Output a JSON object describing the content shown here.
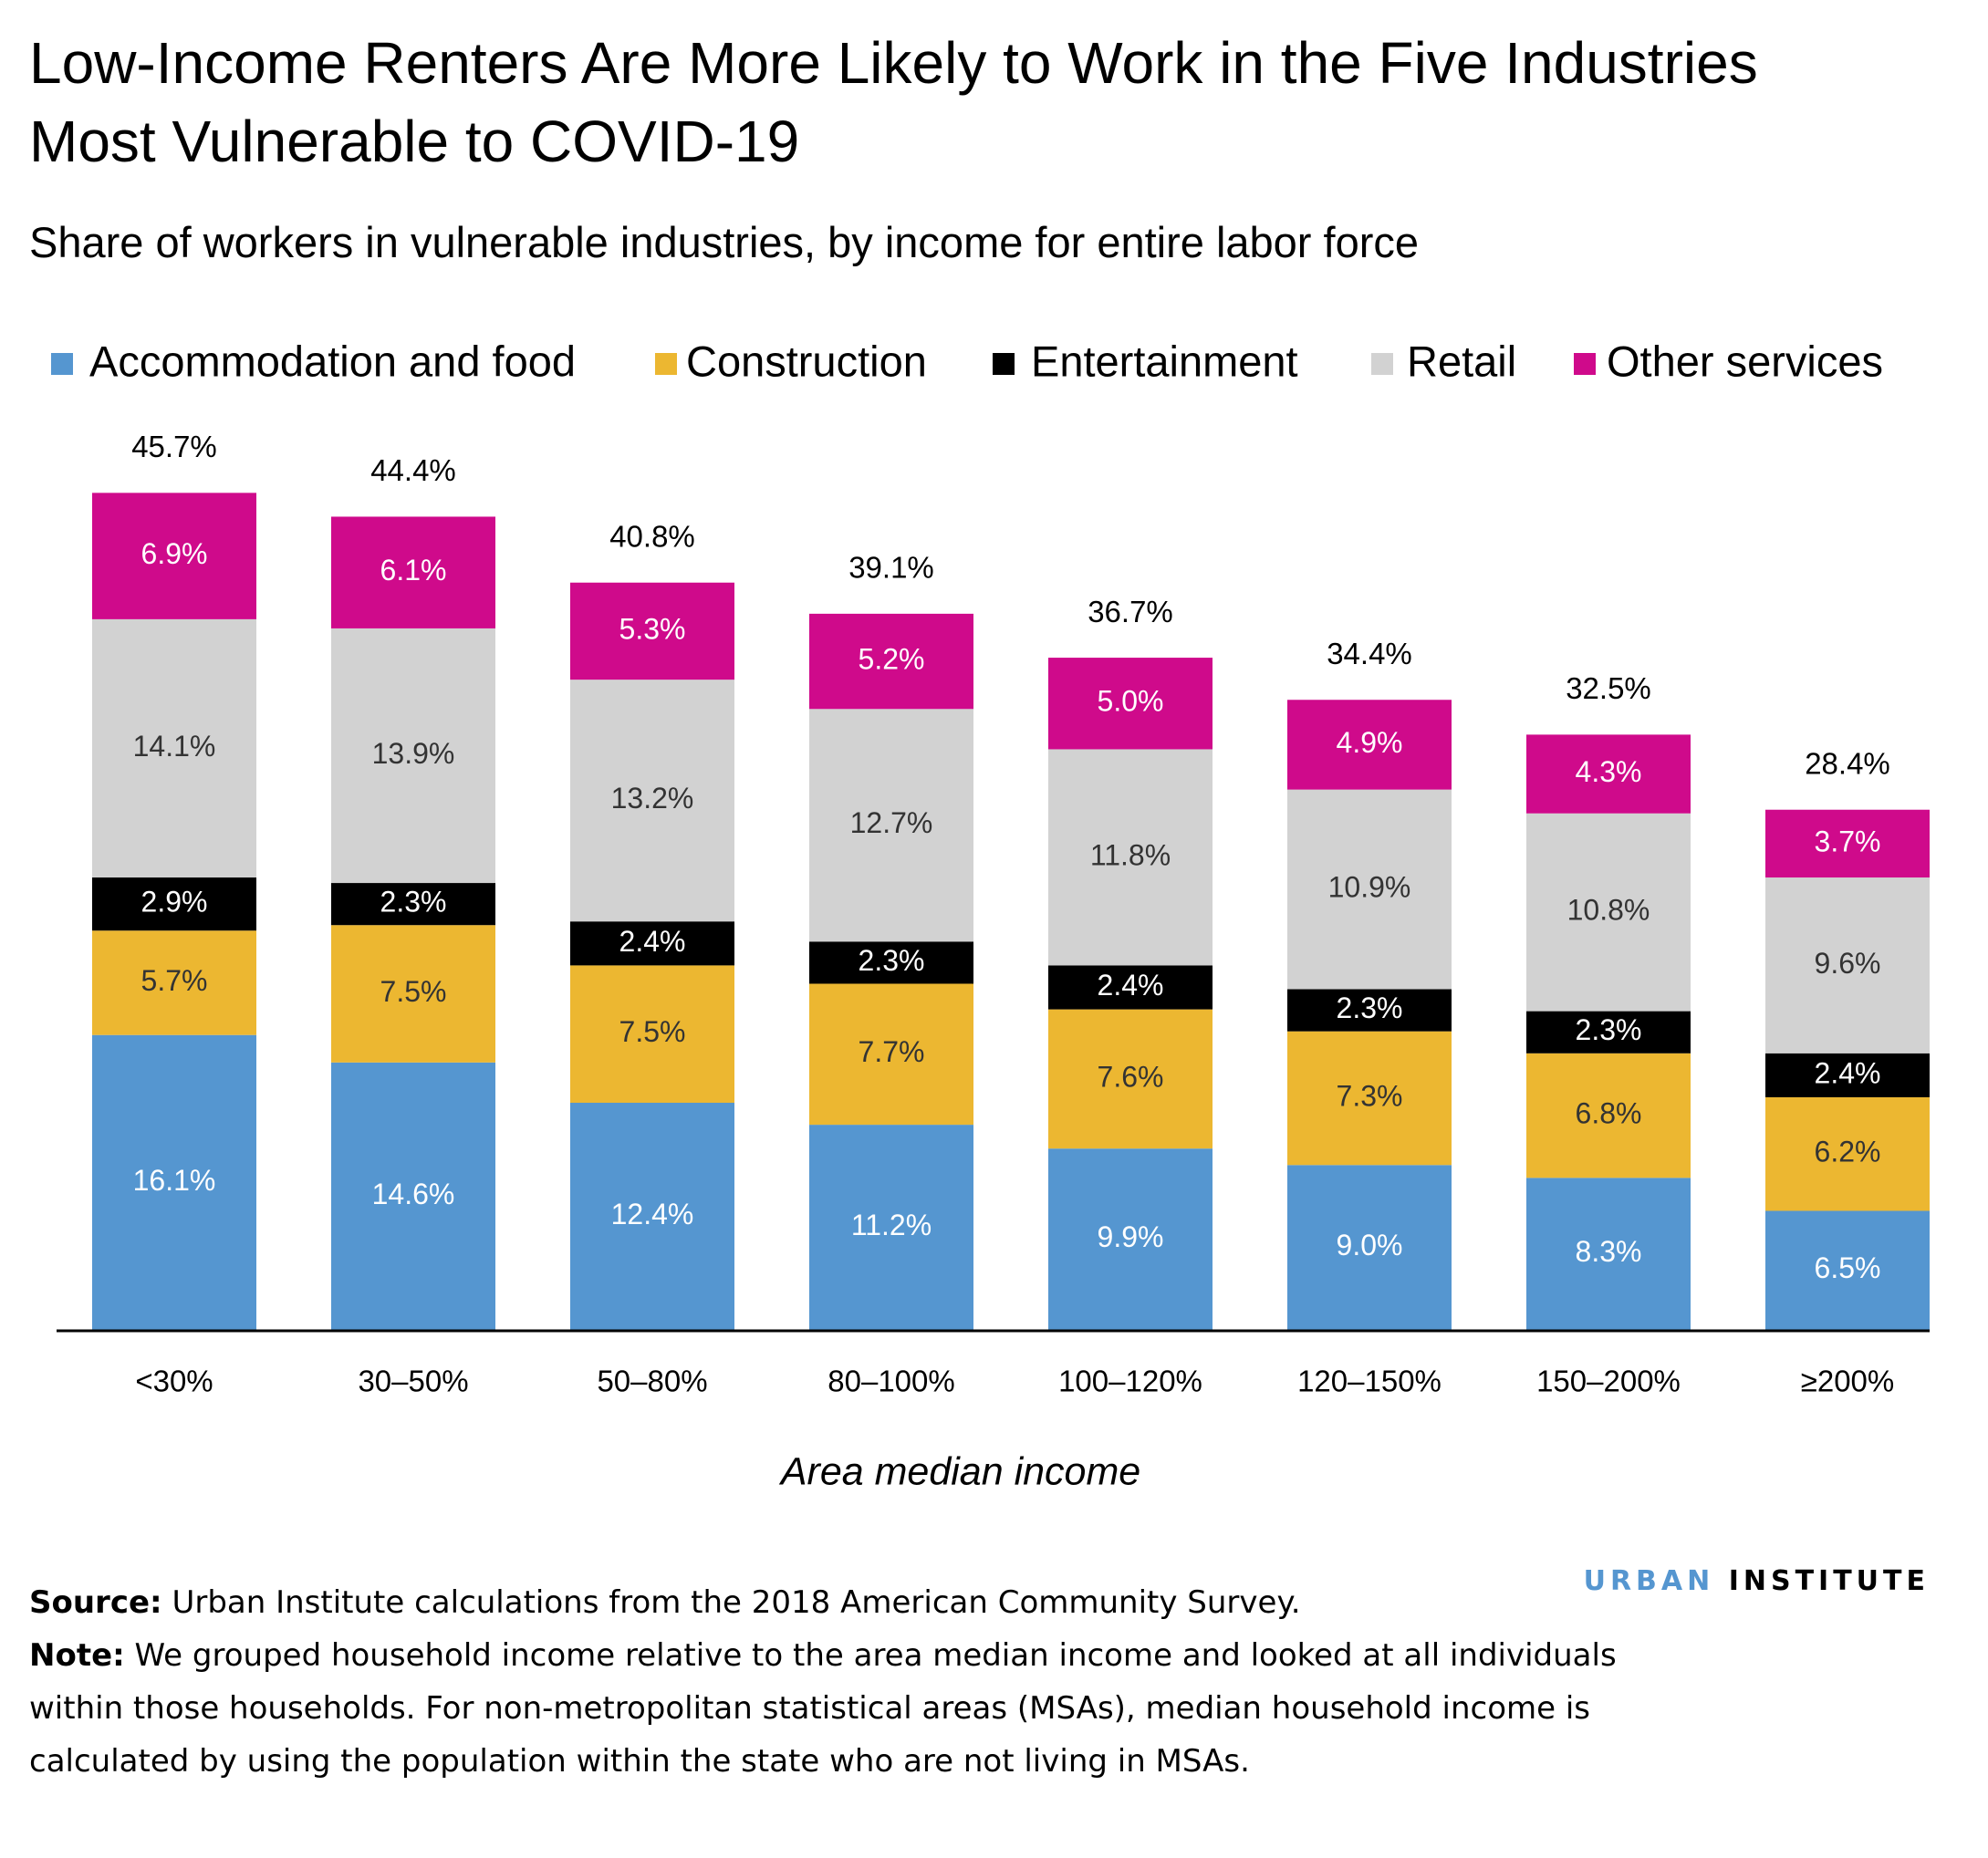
{
  "chart_data": {
    "type": "stacked_bar",
    "title": "Low-Income Renters Are More Likely to Work in the Five Industries Most Vulnerable to COVID-19",
    "subtitle": "Share of workers in vulnerable industries, by income for entire labor force",
    "x_label": "Area median income",
    "categories": [
      "<30%",
      "30–50%",
      "50–80%",
      "80–100%",
      "100–120%",
      "120–150%",
      "150–200%",
      "≥200%"
    ],
    "series": [
      {
        "name": "Accommodation and food",
        "color": "#5596d0",
        "values": [
          16.1,
          14.6,
          12.4,
          11.2,
          9.9,
          9.0,
          8.3,
          6.5
        ],
        "value_labels": [
          "16.1%",
          "14.6%",
          "12.4%",
          "11.2%",
          "9.9%",
          "9.0%",
          "8.3%",
          "6.5%"
        ]
      },
      {
        "name": "Construction",
        "color": "#ecb731",
        "values": [
          5.7,
          7.5,
          7.5,
          7.7,
          7.6,
          7.3,
          6.8,
          6.2
        ],
        "value_labels": [
          "5.7%",
          "7.5%",
          "7.5%",
          "7.7%",
          "7.6%",
          "7.3%",
          "6.8%",
          "6.2%"
        ]
      },
      {
        "name": "Entertainment",
        "color": "#000000",
        "values": [
          2.9,
          2.3,
          2.4,
          2.3,
          2.4,
          2.3,
          2.3,
          2.4
        ],
        "value_labels": [
          "2.9%",
          "2.3%",
          "2.4%",
          "2.3%",
          "2.4%",
          "2.3%",
          "2.3%",
          "2.4%"
        ]
      },
      {
        "name": "Retail",
        "color": "#d2d2d2",
        "values": [
          14.1,
          13.9,
          13.2,
          12.7,
          11.8,
          10.9,
          10.8,
          9.6
        ],
        "value_labels": [
          "14.1%",
          "13.9%",
          "13.2%",
          "12.7%",
          "11.8%",
          "10.9%",
          "10.8%",
          "9.6%"
        ]
      },
      {
        "name": "Other services",
        "color": "#cf0a8b",
        "values": [
          6.9,
          6.1,
          5.3,
          5.2,
          5.0,
          4.9,
          4.3,
          3.7
        ],
        "value_labels": [
          "6.9%",
          "6.1%",
          "5.3%",
          "5.2%",
          "5.0%",
          "4.9%",
          "4.3%",
          "3.7%"
        ]
      }
    ],
    "totals": [
      45.7,
      44.4,
      40.8,
      39.1,
      36.7,
      34.4,
      32.5,
      28.4
    ],
    "total_labels": [
      "45.7%",
      "44.4%",
      "40.8%",
      "39.1%",
      "36.7%",
      "34.4%",
      "32.5%",
      "28.4%"
    ],
    "ylim": [
      0,
      50
    ],
    "legend": "top",
    "source_label": "Source:",
    "source": "Urban Institute calculations from the 2018 American Community Survey.",
    "note_label": "Note:",
    "note": "We grouped household income relative to the area median income and looked at all individuals within those households. For non-metropolitan statistical areas (MSAs), median household income is calculated by using the population within the state who are not living in MSAs.",
    "brand": [
      "URBAN",
      "INSTITUTE"
    ]
  }
}
